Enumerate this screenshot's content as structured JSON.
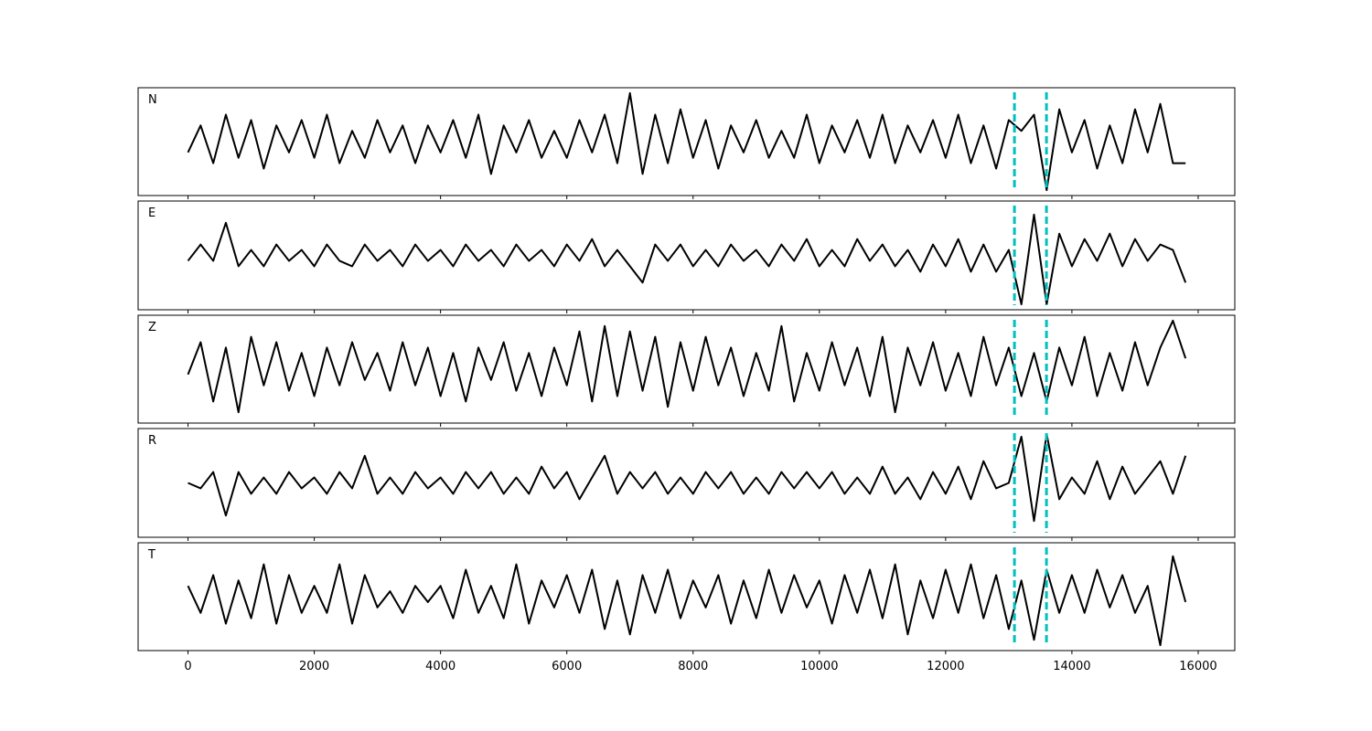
{
  "chart_data": {
    "type": "line",
    "x": [
      0,
      200,
      400,
      600,
      800,
      1000,
      1200,
      1400,
      1600,
      1800,
      2000,
      2200,
      2400,
      2600,
      2800,
      3000,
      3200,
      3400,
      3600,
      3800,
      4000,
      4200,
      4400,
      4600,
      4800,
      5000,
      5200,
      5400,
      5600,
      5800,
      6000,
      6200,
      6400,
      6600,
      6800,
      7000,
      7200,
      7400,
      7600,
      7800,
      8000,
      8200,
      8400,
      8600,
      8800,
      9000,
      9200,
      9400,
      9600,
      9800,
      10000,
      10200,
      10400,
      10600,
      10800,
      11000,
      11200,
      11400,
      11600,
      11800,
      12000,
      12200,
      12400,
      12600,
      12800,
      13000,
      13200,
      13400,
      13600,
      13800,
      14000,
      14200,
      14400,
      14600,
      14800,
      15000,
      15200,
      15400,
      15600,
      15800
    ],
    "xlim": [
      -790,
      16580
    ],
    "xticks": [
      0,
      2000,
      4000,
      6000,
      8000,
      10000,
      12000,
      14000,
      16000
    ],
    "ylim": [
      -1,
      1
    ],
    "vlines": [
      13090,
      13597
    ],
    "vline_color": "#00bfbf",
    "series": [
      {
        "name": "N",
        "color": "#000000",
        "values": [
          -0.2,
          0.3,
          -0.4,
          0.5,
          -0.3,
          0.4,
          -0.5,
          0.3,
          -0.2,
          0.4,
          -0.3,
          0.5,
          -0.4,
          0.2,
          -0.3,
          0.4,
          -0.2,
          0.3,
          -0.4,
          0.3,
          -0.2,
          0.4,
          -0.3,
          0.5,
          -0.6,
          0.3,
          -0.2,
          0.4,
          -0.3,
          0.2,
          -0.3,
          0.4,
          -0.2,
          0.5,
          -0.4,
          0.9,
          -0.6,
          0.5,
          -0.4,
          0.6,
          -0.3,
          0.4,
          -0.5,
          0.3,
          -0.2,
          0.4,
          -0.3,
          0.2,
          -0.3,
          0.5,
          -0.4,
          0.3,
          -0.2,
          0.4,
          -0.3,
          0.5,
          -0.4,
          0.3,
          -0.2,
          0.4,
          -0.3,
          0.5,
          -0.4,
          0.3,
          -0.5,
          0.4,
          0.2,
          0.5,
          -0.9,
          0.6,
          -0.2,
          0.4,
          -0.5,
          0.3,
          -0.4,
          0.6,
          -0.2,
          0.7,
          -0.4,
          -0.4
        ]
      },
      {
        "name": "E",
        "color": "#000000",
        "values": [
          -0.1,
          0.2,
          -0.1,
          0.6,
          -0.2,
          0.1,
          -0.2,
          0.2,
          -0.1,
          0.1,
          -0.2,
          0.2,
          -0.1,
          -0.2,
          0.2,
          -0.1,
          0.1,
          -0.2,
          0.2,
          -0.1,
          0.1,
          -0.2,
          0.2,
          -0.1,
          0.1,
          -0.2,
          0.2,
          -0.1,
          0.1,
          -0.2,
          0.2,
          -0.1,
          0.3,
          -0.2,
          0.1,
          -0.2,
          -0.5,
          0.2,
          -0.1,
          0.2,
          -0.2,
          0.1,
          -0.2,
          0.2,
          -0.1,
          0.1,
          -0.2,
          0.2,
          -0.1,
          0.3,
          -0.2,
          0.1,
          -0.2,
          0.3,
          -0.1,
          0.2,
          -0.2,
          0.1,
          -0.3,
          0.2,
          -0.2,
          0.3,
          -0.3,
          0.2,
          -0.3,
          0.1,
          -0.9,
          0.75,
          -0.9,
          0.4,
          -0.2,
          0.3,
          -0.1,
          0.4,
          -0.2,
          0.3,
          -0.1,
          0.2,
          0.1,
          -0.5
        ]
      },
      {
        "name": "Z",
        "color": "#000000",
        "values": [
          -0.1,
          0.5,
          -0.6,
          0.4,
          -0.8,
          0.6,
          -0.3,
          0.5,
          -0.4,
          0.3,
          -0.5,
          0.4,
          -0.3,
          0.5,
          -0.2,
          0.3,
          -0.4,
          0.5,
          -0.3,
          0.4,
          -0.5,
          0.3,
          -0.6,
          0.4,
          -0.2,
          0.5,
          -0.4,
          0.3,
          -0.5,
          0.4,
          -0.3,
          0.7,
          -0.6,
          0.8,
          -0.5,
          0.7,
          -0.4,
          0.6,
          -0.7,
          0.5,
          -0.4,
          0.6,
          -0.3,
          0.4,
          -0.5,
          0.3,
          -0.4,
          0.8,
          -0.6,
          0.3,
          -0.4,
          0.5,
          -0.3,
          0.4,
          -0.5,
          0.6,
          -0.8,
          0.4,
          -0.3,
          0.5,
          -0.4,
          0.3,
          -0.5,
          0.6,
          -0.3,
          0.4,
          -0.5,
          0.3,
          -0.6,
          0.4,
          -0.3,
          0.6,
          -0.5,
          0.3,
          -0.4,
          0.5,
          -0.3,
          0.4,
          0.9,
          0.2
        ]
      },
      {
        "name": "R",
        "color": "#000000",
        "values": [
          0.0,
          -0.1,
          0.2,
          -0.6,
          0.2,
          -0.2,
          0.1,
          -0.2,
          0.2,
          -0.1,
          0.1,
          -0.2,
          0.2,
          -0.1,
          0.5,
          -0.2,
          0.1,
          -0.2,
          0.2,
          -0.1,
          0.1,
          -0.2,
          0.2,
          -0.1,
          0.2,
          -0.2,
          0.1,
          -0.2,
          0.3,
          -0.1,
          0.2,
          -0.3,
          0.1,
          0.5,
          -0.2,
          0.2,
          -0.1,
          0.2,
          -0.2,
          0.1,
          -0.2,
          0.2,
          -0.1,
          0.2,
          -0.2,
          0.1,
          -0.2,
          0.2,
          -0.1,
          0.2,
          -0.1,
          0.2,
          -0.2,
          0.1,
          -0.2,
          0.3,
          -0.2,
          0.1,
          -0.3,
          0.2,
          -0.2,
          0.3,
          -0.3,
          0.4,
          -0.1,
          0.0,
          0.85,
          -0.7,
          0.9,
          -0.3,
          0.1,
          -0.2,
          0.4,
          -0.3,
          0.3,
          -0.2,
          0.1,
          0.4,
          -0.2,
          0.5
        ]
      },
      {
        "name": "T",
        "color": "#000000",
        "values": [
          0.2,
          -0.3,
          0.4,
          -0.5,
          0.3,
          -0.4,
          0.6,
          -0.5,
          0.4,
          -0.3,
          0.2,
          -0.3,
          0.6,
          -0.5,
          0.4,
          -0.2,
          0.1,
          -0.3,
          0.2,
          -0.1,
          0.2,
          -0.4,
          0.5,
          -0.3,
          0.2,
          -0.4,
          0.6,
          -0.5,
          0.3,
          -0.2,
          0.4,
          -0.3,
          0.5,
          -0.6,
          0.3,
          -0.7,
          0.4,
          -0.3,
          0.5,
          -0.4,
          0.3,
          -0.2,
          0.4,
          -0.5,
          0.3,
          -0.4,
          0.5,
          -0.3,
          0.4,
          -0.2,
          0.3,
          -0.5,
          0.4,
          -0.3,
          0.5,
          -0.4,
          0.6,
          -0.7,
          0.3,
          -0.4,
          0.5,
          -0.3,
          0.6,
          -0.4,
          0.4,
          -0.6,
          0.3,
          -0.8,
          0.5,
          -0.3,
          0.4,
          -0.3,
          0.5,
          -0.2,
          0.4,
          -0.3,
          0.2,
          -0.9,
          0.75,
          -0.1
        ]
      }
    ]
  }
}
